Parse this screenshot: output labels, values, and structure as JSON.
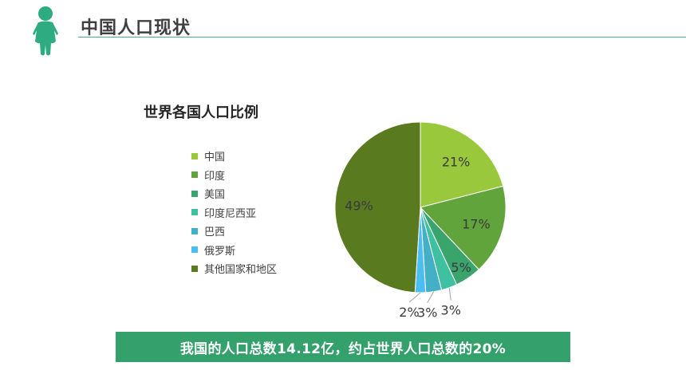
{
  "header": {
    "title": "中国人口现状",
    "icon": "person-icon",
    "accent": "#2fab82"
  },
  "chart_data": {
    "type": "pie",
    "title": "世界各国人口比例",
    "legend_position": "left",
    "slices": [
      {
        "label": "中国",
        "value": 21,
        "display": "21%",
        "color": "#99c83c"
      },
      {
        "label": "印度",
        "value": 17,
        "display": "17%",
        "color": "#62a43c"
      },
      {
        "label": "美国",
        "value": 5,
        "display": "5%",
        "color": "#39a56c"
      },
      {
        "label": "印度尼西亚",
        "value": 3,
        "display": "3%",
        "color": "#3fc0a1"
      },
      {
        "label": "巴西",
        "value": 3,
        "display": "3%",
        "color": "#44b0c6"
      },
      {
        "label": "俄罗斯",
        "value": 2,
        "display": "2%",
        "color": "#4cbdf0"
      },
      {
        "label": "其他国家和地区",
        "value": 49,
        "display": "49%",
        "color": "#5a7a20"
      }
    ]
  },
  "banner": {
    "text": "我国的人口总数14.12亿，约占世界人口总数的20%",
    "color": "#34a06b"
  }
}
